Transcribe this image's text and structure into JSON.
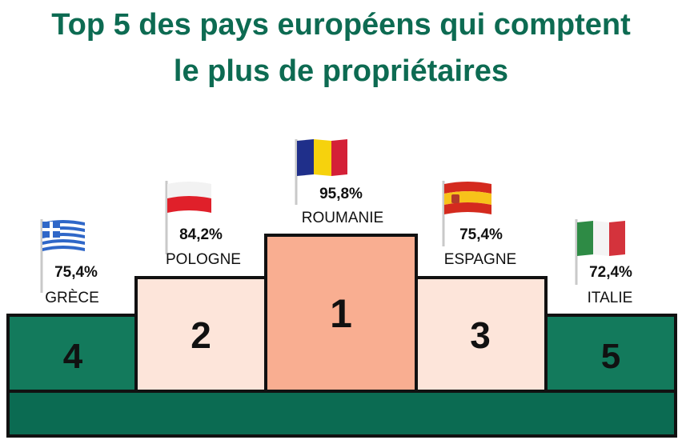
{
  "title_line1": "Top 5 des pays européens qui comptent",
  "title_line2": "le plus de propriétaires",
  "colors": {
    "title": "#0d6b52",
    "rank1": "#f9ae91",
    "rank2_3": "#fde5da",
    "rank4_5": "#137a5c",
    "base": "#0b6b52"
  },
  "chart_data": {
    "type": "bar",
    "title": "Top 5 des pays européens qui comptent le plus de propriétaires",
    "categories": [
      "GRÈCE",
      "POLOGNE",
      "ROUMANIE",
      "ESPAGNE",
      "ITALIE"
    ],
    "values": [
      75.4,
      84.2,
      95.8,
      75.4,
      72.4
    ],
    "value_labels": [
      "75,4%",
      "84,2%",
      "95,8%",
      "75,4%",
      "72,4%"
    ],
    "ranks": [
      "4",
      "2",
      "1",
      "3",
      "5"
    ],
    "flags": [
      "greece-flag-icon",
      "poland-flag-icon",
      "romania-flag-icon",
      "spain-flag-icon",
      "italy-flag-icon"
    ],
    "unit": "%"
  }
}
